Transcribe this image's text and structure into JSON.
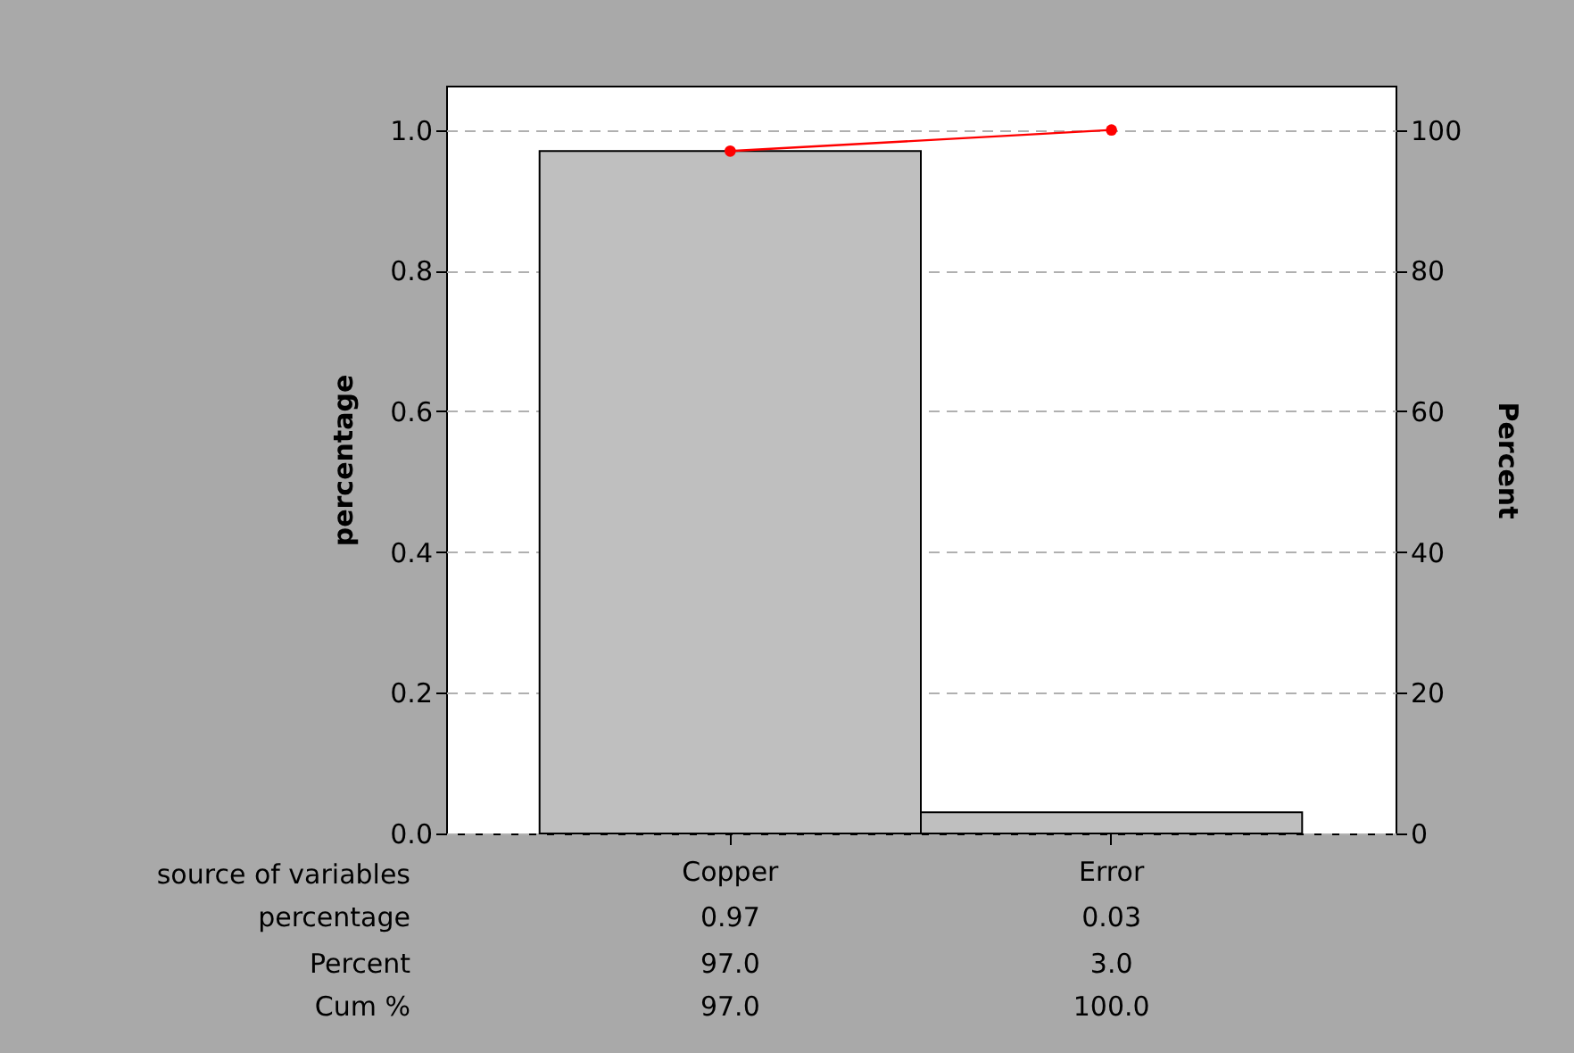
{
  "chart_data": {
    "type": "bar",
    "xlabel": "source of variables",
    "ylabel": "percentage",
    "y2label": "Percent",
    "categories": [
      "Copper",
      "Error"
    ],
    "series": [
      {
        "color": "#bfbfbf",
        "values": [
          0.97,
          0.03
        ],
        "value_labels": [
          "0.97",
          "0.03"
        ]
      },
      {
        "type": "line",
        "axis": "y2",
        "color": "#ff0000",
        "marker": "circle",
        "values": [
          97.0,
          100.0
        ],
        "value_labels": [
          "97.0",
          "100.0"
        ]
      }
    ],
    "ylim": [
      0,
      1.063
    ],
    "yticks": [
      {
        "value": 0,
        "label": "0.0"
      },
      0.2,
      0.4,
      0.6,
      0.8,
      {
        "value": 1,
        "label": "1.0"
      }
    ],
    "y2lim": [
      0,
      106.3
    ],
    "y2ticks": [
      0,
      20,
      40,
      60,
      80,
      100
    ],
    "grid": "y",
    "annotations": [
      "percentage",
      "Percent",
      "Cum %",
      "97.0",
      "3.0"
    ]
  }
}
